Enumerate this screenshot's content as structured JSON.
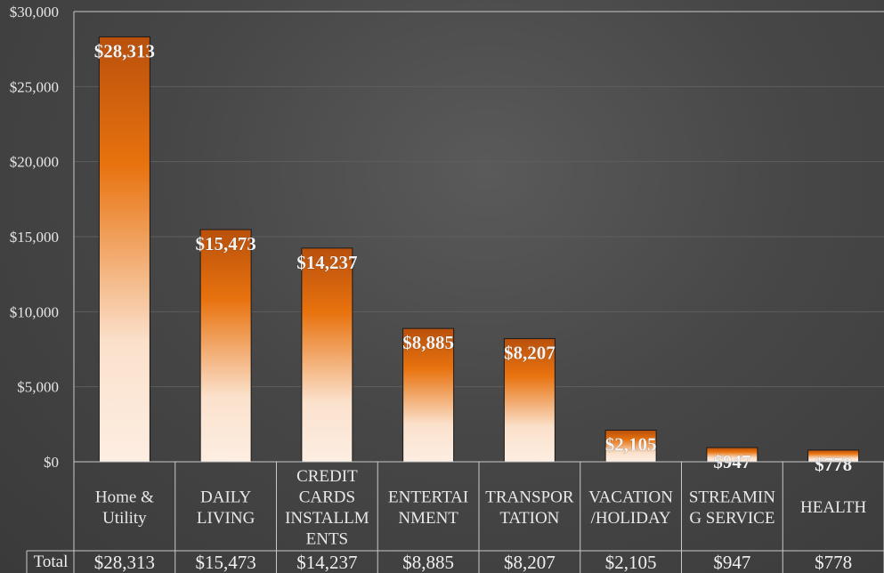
{
  "chart_data": {
    "type": "bar",
    "title": "",
    "xlabel": "",
    "ylabel": "",
    "ylim": [
      0,
      30000
    ],
    "yticks": [
      0,
      5000,
      10000,
      15000,
      20000,
      25000,
      30000
    ],
    "ytick_labels": [
      "$0",
      "$5,000",
      "$10,000",
      "$15,000",
      "$20,000",
      "$25,000",
      "$30,000"
    ],
    "grid": true,
    "legend": "none",
    "categories": [
      [
        "Home &",
        "Utility"
      ],
      [
        "DAILY",
        "LIVING"
      ],
      [
        "CREDIT",
        "CARDS",
        "INSTALLM",
        "ENTS"
      ],
      [
        "ENTERTAI",
        "NMENT"
      ],
      [
        "TRANSPOR",
        "TATION"
      ],
      [
        "VACATION",
        "/HOLIDAY"
      ],
      [
        "STREAMIN",
        "G SERVICE"
      ],
      [
        "HEALTH"
      ]
    ],
    "values": [
      28313,
      15473,
      14237,
      8885,
      8207,
      2105,
      947,
      778
    ],
    "data_labels": [
      "$28,313",
      "$15,473",
      "$14,237",
      "$8,885",
      "$8,207",
      "$2,105",
      "$947",
      "$778"
    ],
    "table": {
      "row_header": "Total",
      "values": [
        "$28,313",
        "$15,473",
        "$14,237",
        "$8,885",
        "$8,207",
        "$2,105",
        "$947",
        "$778"
      ]
    }
  },
  "colors": {
    "bar_top": "#b9500c",
    "bar_mid": "#e8720e",
    "bar_light": "#fbe1cc",
    "bar_bottom": "#fdeee2",
    "grid": "#5e5e5e",
    "table_line": "#c8c8c8"
  }
}
